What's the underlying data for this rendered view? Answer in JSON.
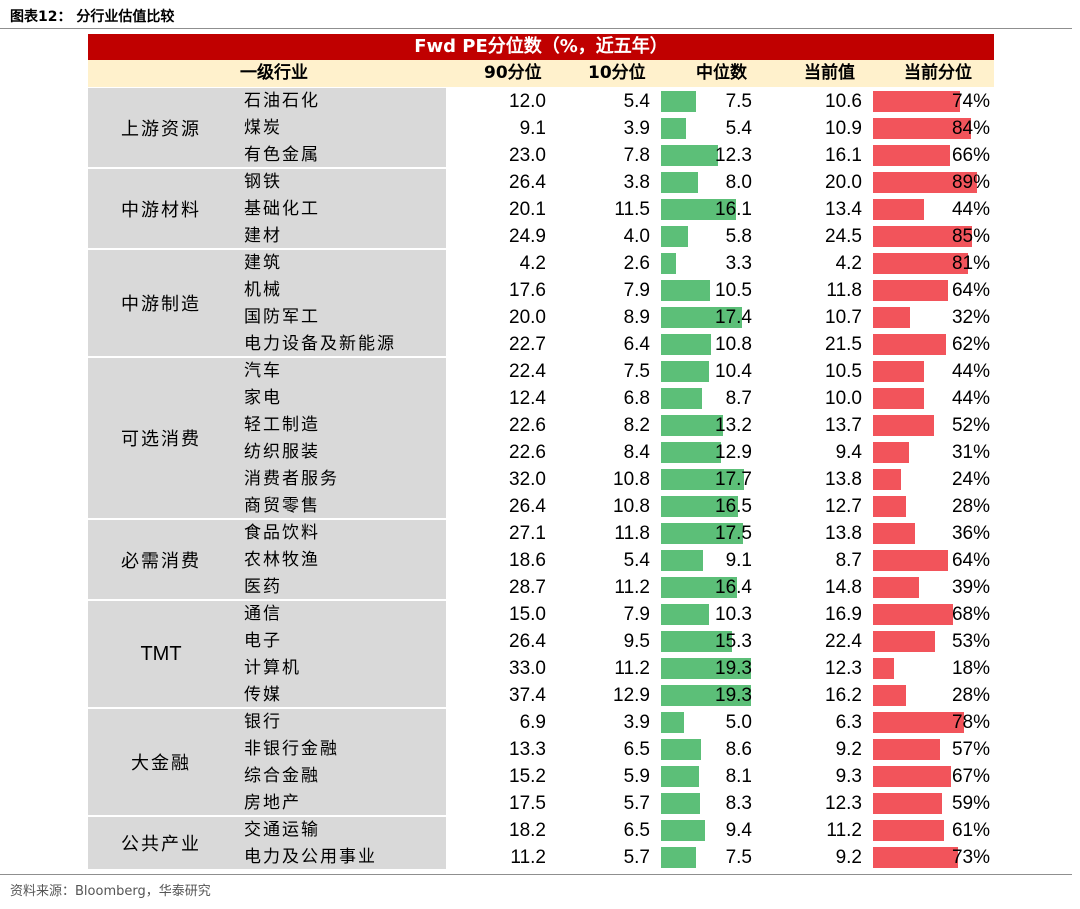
{
  "figure_title": "图表12：  分行业估值比较",
  "banner": "Fwd PE分位数（%，近五年）",
  "headers": {
    "industry": "一级行业",
    "p90": "90分位",
    "p10": "10分位",
    "median": "中位数",
    "current": "当前值",
    "current_pct": "当前分位"
  },
  "groups": [
    {
      "name": "上游资源",
      "rows": 3
    },
    {
      "name": "中游材料",
      "rows": 3
    },
    {
      "name": "中游制造",
      "rows": 4
    },
    {
      "name": "可选消费",
      "rows": 6
    },
    {
      "name": "必需消费",
      "rows": 3
    },
    {
      "name": "TMT",
      "rows": 4
    },
    {
      "name": "大金融",
      "rows": 4
    },
    {
      "name": "公共产业",
      "rows": 2
    }
  ],
  "rows": [
    {
      "industry": "石油石化",
      "p90": "12.0",
      "p10": "5.4",
      "median": "7.5",
      "current": "10.6",
      "current_pct": "74%"
    },
    {
      "industry": "煤炭",
      "p90": "9.1",
      "p10": "3.9",
      "median": "5.4",
      "current": "10.9",
      "current_pct": "84%"
    },
    {
      "industry": "有色金属",
      "p90": "23.0",
      "p10": "7.8",
      "median": "12.3",
      "current": "16.1",
      "current_pct": "66%"
    },
    {
      "industry": "钢铁",
      "p90": "26.4",
      "p10": "3.8",
      "median": "8.0",
      "current": "20.0",
      "current_pct": "89%"
    },
    {
      "industry": "基础化工",
      "p90": "20.1",
      "p10": "11.5",
      "median": "16.1",
      "current": "13.4",
      "current_pct": "44%"
    },
    {
      "industry": "建材",
      "p90": "24.9",
      "p10": "4.0",
      "median": "5.8",
      "current": "24.5",
      "current_pct": "85%"
    },
    {
      "industry": "建筑",
      "p90": "4.2",
      "p10": "2.6",
      "median": "3.3",
      "current": "4.2",
      "current_pct": "81%"
    },
    {
      "industry": "机械",
      "p90": "17.6",
      "p10": "7.9",
      "median": "10.5",
      "current": "11.8",
      "current_pct": "64%"
    },
    {
      "industry": "国防军工",
      "p90": "20.0",
      "p10": "8.9",
      "median": "17.4",
      "current": "10.7",
      "current_pct": "32%"
    },
    {
      "industry": "电力设备及新能源",
      "p90": "22.7",
      "p10": "6.4",
      "median": "10.8",
      "current": "21.5",
      "current_pct": "62%"
    },
    {
      "industry": "汽车",
      "p90": "22.4",
      "p10": "7.5",
      "median": "10.4",
      "current": "10.5",
      "current_pct": "44%"
    },
    {
      "industry": "家电",
      "p90": "12.4",
      "p10": "6.8",
      "median": "8.7",
      "current": "10.0",
      "current_pct": "44%"
    },
    {
      "industry": "轻工制造",
      "p90": "22.6",
      "p10": "8.2",
      "median": "13.2",
      "current": "13.7",
      "current_pct": "52%"
    },
    {
      "industry": "纺织服装",
      "p90": "22.6",
      "p10": "8.4",
      "median": "12.9",
      "current": "9.4",
      "current_pct": "31%"
    },
    {
      "industry": "消费者服务",
      "p90": "32.0",
      "p10": "10.8",
      "median": "17.7",
      "current": "13.8",
      "current_pct": "24%"
    },
    {
      "industry": "商贸零售",
      "p90": "26.4",
      "p10": "10.8",
      "median": "16.5",
      "current": "12.7",
      "current_pct": "28%"
    },
    {
      "industry": "食品饮料",
      "p90": "27.1",
      "p10": "11.8",
      "median": "17.5",
      "current": "13.8",
      "current_pct": "36%"
    },
    {
      "industry": "农林牧渔",
      "p90": "18.6",
      "p10": "5.4",
      "median": "9.1",
      "current": "8.7",
      "current_pct": "64%"
    },
    {
      "industry": "医药",
      "p90": "28.7",
      "p10": "11.2",
      "median": "16.4",
      "current": "14.8",
      "current_pct": "39%"
    },
    {
      "industry": "通信",
      "p90": "15.0",
      "p10": "7.9",
      "median": "10.3",
      "current": "16.9",
      "current_pct": "68%"
    },
    {
      "industry": "电子",
      "p90": "26.4",
      "p10": "9.5",
      "median": "15.3",
      "current": "22.4",
      "current_pct": "53%"
    },
    {
      "industry": "计算机",
      "p90": "33.0",
      "p10": "11.2",
      "median": "19.3",
      "current": "12.3",
      "current_pct": "18%"
    },
    {
      "industry": "传媒",
      "p90": "37.4",
      "p10": "12.9",
      "median": "19.3",
      "current": "16.2",
      "current_pct": "28%"
    },
    {
      "industry": "银行",
      "p90": "6.9",
      "p10": "3.9",
      "median": "5.0",
      "current": "6.3",
      "current_pct": "78%"
    },
    {
      "industry": "非银行金融",
      "p90": "13.3",
      "p10": "6.5",
      "median": "8.6",
      "current": "9.2",
      "current_pct": "57%"
    },
    {
      "industry": "综合金融",
      "p90": "15.2",
      "p10": "5.9",
      "median": "8.1",
      "current": "9.3",
      "current_pct": "67%"
    },
    {
      "industry": "房地产",
      "p90": "17.5",
      "p10": "5.7",
      "median": "8.3",
      "current": "12.3",
      "current_pct": "59%"
    },
    {
      "industry": "交通运输",
      "p90": "18.2",
      "p10": "6.5",
      "median": "9.4",
      "current": "11.2",
      "current_pct": "61%"
    },
    {
      "industry": "电力及公用事业",
      "p90": "11.2",
      "p10": "5.7",
      "median": "7.5",
      "current": "9.2",
      "current_pct": "73%"
    }
  ],
  "colors": {
    "banner": "#c00000",
    "header_bg": "#fff1cc",
    "group_bg": "#d9d9d9",
    "median_bar": "#5cbf78",
    "pct_bar": "#f2545b"
  },
  "footnote": "资料来源：Bloomberg，华泰研究"
}
